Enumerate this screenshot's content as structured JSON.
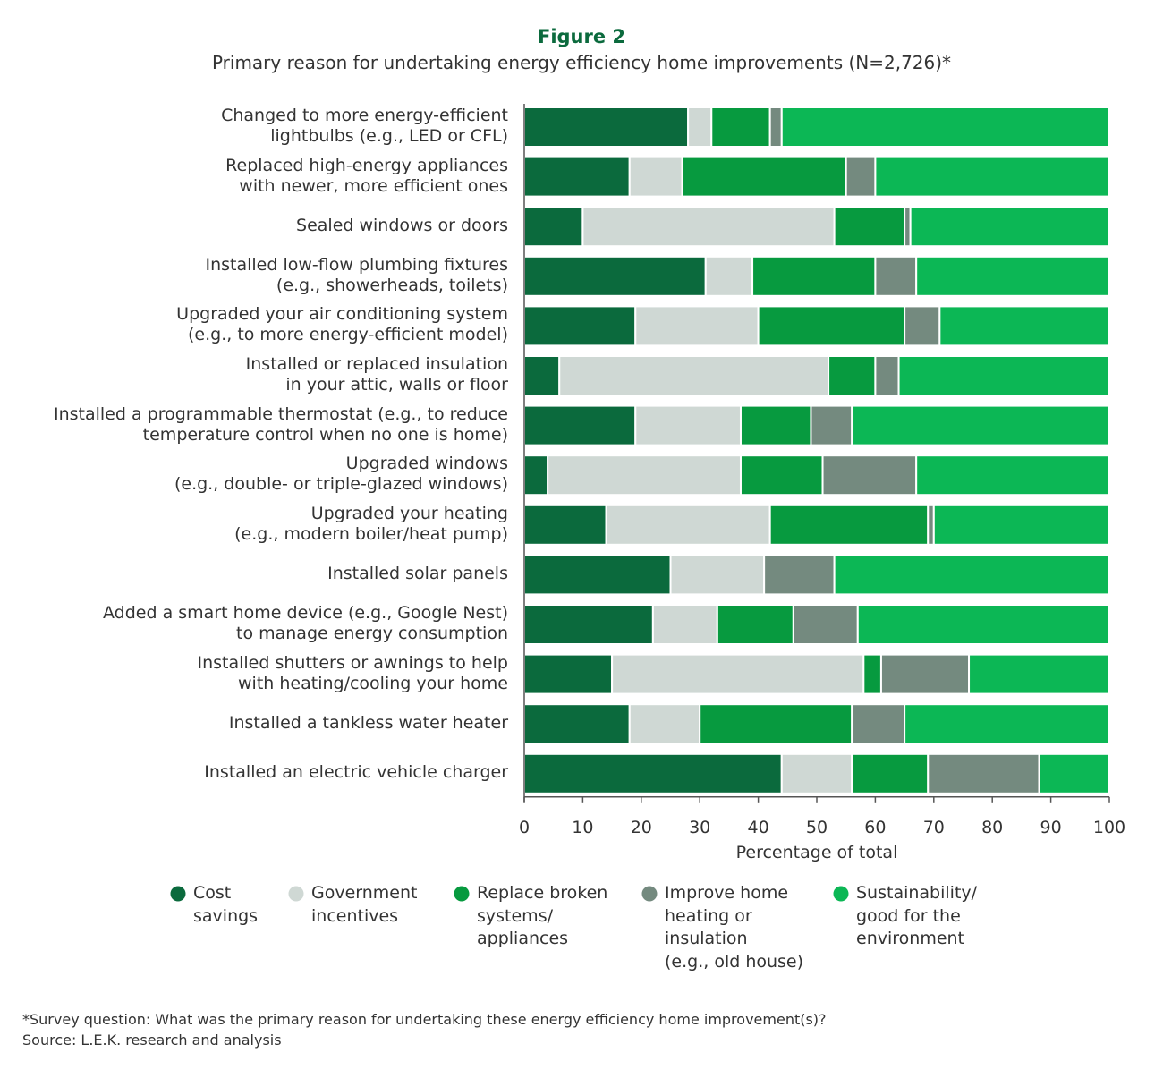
{
  "chart_data": {
    "type": "stacked_barh",
    "title": "Figure 2",
    "subtitle": "Primary reason for undertaking energy efficiency home improvements (N=2,726)*",
    "xlabel": "Percentage of total",
    "categories": [
      "Changed to more energy-efficient\nlightbulbs (e.g., LED or CFL)",
      "Replaced high-energy appliances\nwith newer, more efficient ones",
      "Sealed windows or doors",
      "Installed low-flow plumbing fixtures\n(e.g., showerheads, toilets)",
      "Upgraded your air conditioning system\n(e.g., to more energy-efficient model)",
      "Installed or replaced insulation\nin your attic, walls or floor",
      "Installed a programmable thermostat (e.g., to reduce\ntemperature control when no one is home)",
      "Upgraded windows\n(e.g., double- or triple-glazed windows)",
      "Upgraded your heating\n(e.g., modern boiler/heat pump)",
      "Installed solar panels",
      "Added a smart home device (e.g., Google Nest)\nto manage energy consumption",
      "Installed shutters or awnings to help\nwith heating/cooling your home",
      "Installed a tankless water heater",
      "Installed an electric vehicle charger"
    ],
    "series": [
      {
        "name": "Cost\nsavings",
        "color": "#0b6a3d",
        "values": [
          28,
          18,
          10,
          31,
          19,
          6,
          19,
          4,
          14,
          25,
          22,
          15,
          18,
          44
        ]
      },
      {
        "name": "Government\nincentives",
        "color": "#cfd8d4",
        "values": [
          4,
          9,
          43,
          8,
          21,
          46,
          18,
          33,
          28,
          16,
          11,
          43,
          12,
          12
        ]
      },
      {
        "name": "Replace broken\nsystems/\nappliances",
        "color": "#079a3f",
        "values": [
          10,
          28,
          12,
          21,
          25,
          8,
          12,
          14,
          27,
          0,
          13,
          3,
          26,
          13
        ]
      },
      {
        "name": "Improve home\nheating or\ninsulation\n(e.g., old house)",
        "color": "#748a7f",
        "values": [
          2,
          5,
          1,
          7,
          6,
          4,
          7,
          16,
          1,
          12,
          11,
          15,
          9,
          19
        ]
      },
      {
        "name": "Sustainability/\ngood for the\nenvironment",
        "color": "#0cb755",
        "values": [
          56,
          40,
          34,
          33,
          29,
          36,
          44,
          33,
          30,
          47,
          43,
          24,
          35,
          12
        ]
      }
    ],
    "xlim": [
      0,
      100
    ],
    "xticks": [
      0,
      10,
      20,
      30,
      40,
      50,
      60,
      70,
      80,
      90,
      100
    ],
    "footnotes": [
      "*Survey question: What was the primary reason for undertaking these energy efficiency home improvement(s)?",
      "Source: L.E.K. research and analysis"
    ]
  }
}
